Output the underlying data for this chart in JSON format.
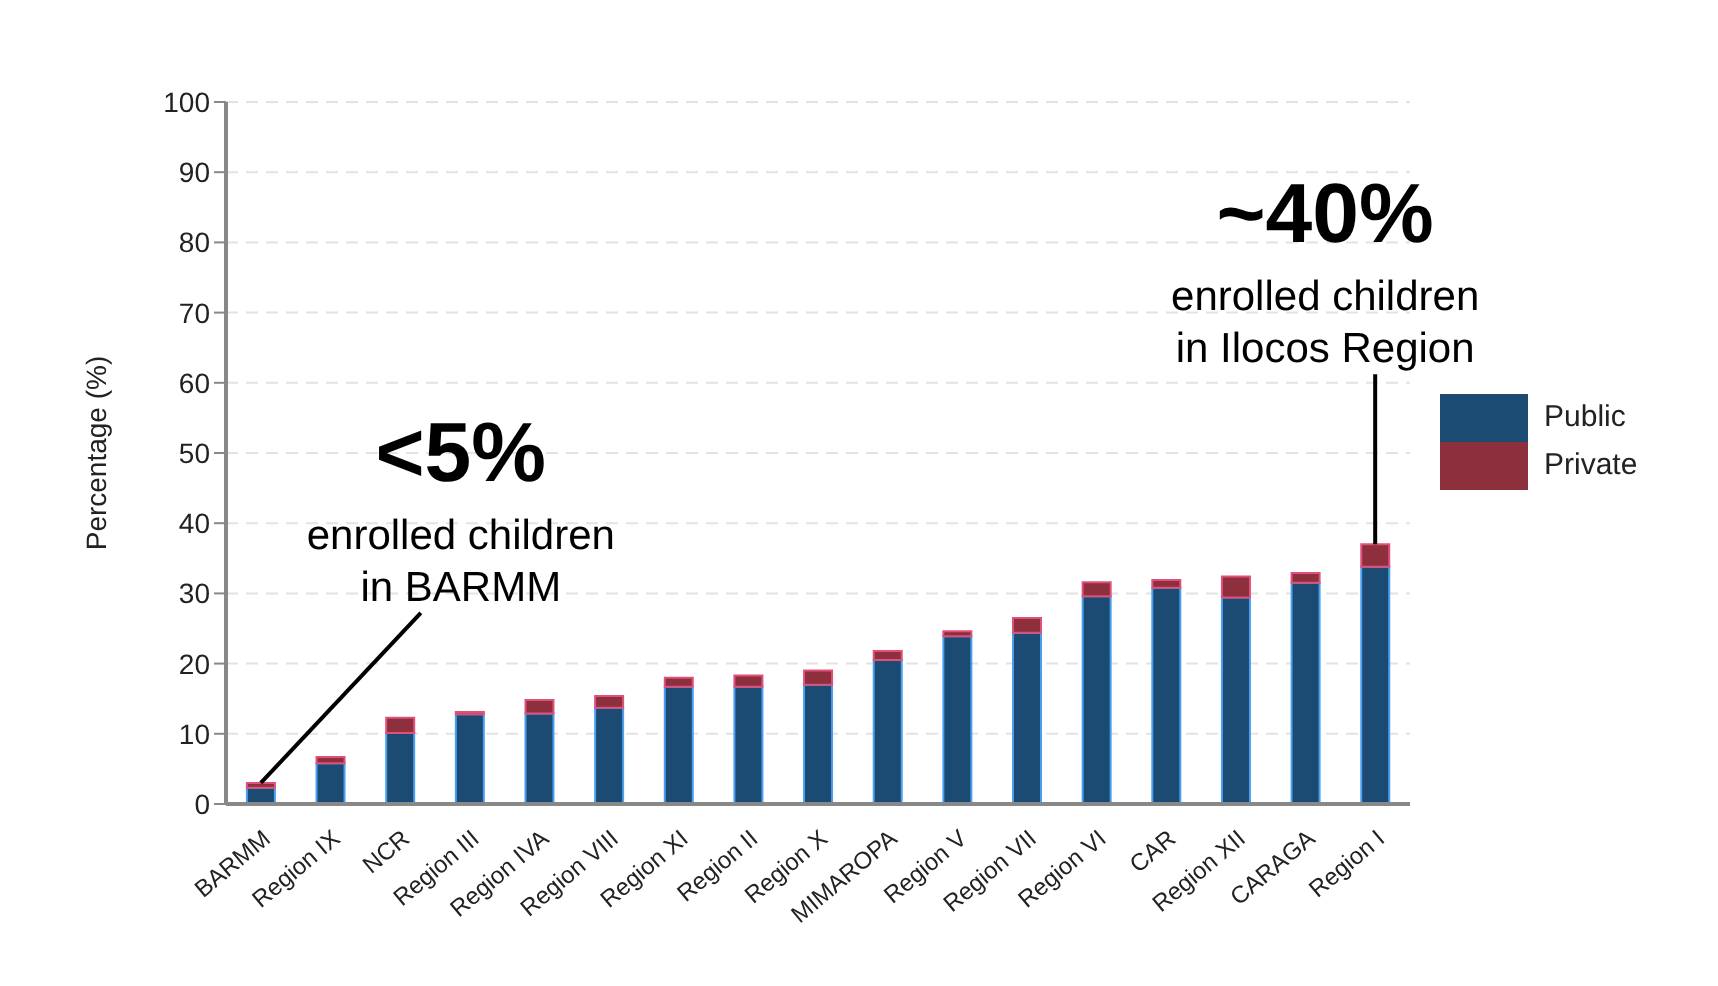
{
  "chart_data": {
    "type": "bar",
    "stacked": true,
    "categories": [
      "BARMM",
      "Region IX",
      "NCR",
      "Region III",
      "Region IVA",
      "Region VIII",
      "Region XI",
      "Region II",
      "Region X",
      "MIMAROPA",
      "Region V",
      "Region VII",
      "Region VI",
      "CAR",
      "Region XII",
      "CARAGA",
      "Region I"
    ],
    "series": [
      {
        "name": "Public",
        "color": "#1b4a72",
        "values": [
          2.3,
          5.8,
          10.1,
          12.8,
          12.9,
          13.7,
          16.7,
          16.7,
          17.0,
          20.5,
          23.9,
          24.4,
          29.6,
          30.8,
          29.4,
          31.5,
          33.8
        ]
      },
      {
        "name": "Private",
        "color": "#8e2f3d",
        "values": [
          0.7,
          0.9,
          2.2,
          0.3,
          1.9,
          1.7,
          1.3,
          1.6,
          2.0,
          1.3,
          0.7,
          2.1,
          2.0,
          1.1,
          3.0,
          1.4,
          3.2
        ]
      }
    ],
    "ylabel": "Percentage (%)",
    "ylim": [
      0,
      100
    ],
    "yticks": [
      0,
      10,
      20,
      30,
      40,
      50,
      60,
      70,
      80,
      90,
      100
    ],
    "grid": "y",
    "legend": "right",
    "annotations": [
      {
        "text": "<5%\nenrolled children\nin BARMM",
        "x": "BARMM",
        "y": 3
      },
      {
        "text": "~40%\nenrolled children\nin Ilocos Region",
        "x": "Region I",
        "y": 37
      }
    ]
  }
}
